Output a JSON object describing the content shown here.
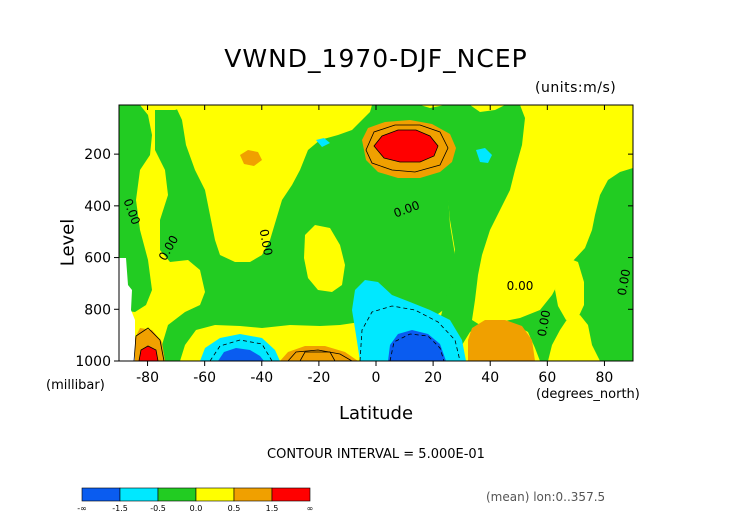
{
  "chart_data": {
    "type": "heatmap",
    "title": "VWND_1970-DJF_NCEP",
    "units_label": "(units:m/s)",
    "xlabel": "Latitude",
    "ylabel": "Level",
    "x_unit_label": "(degrees_north)",
    "y_unit_label": "(millibar)",
    "xlim": [
      -90,
      90
    ],
    "ylim": [
      1000,
      10
    ],
    "x_ticks": [
      -80,
      -60,
      -40,
      -20,
      0,
      20,
      40,
      60,
      80
    ],
    "x_tick_labels": [
      "-80",
      "-60",
      "-40",
      "-20",
      "0",
      "20",
      "40",
      "60",
      "80"
    ],
    "y_ticks": [
      200,
      400,
      600,
      800,
      1000
    ],
    "y_tick_labels": [
      "200",
      "400",
      "600",
      "800",
      "1000"
    ],
    "contour_interval_text": "CONTOUR INTERVAL = 5.000E-01",
    "contour_labels": [
      "0.00",
      "0.00",
      "0.00",
      "0.00",
      "0.00",
      "0.00",
      "0.00"
    ],
    "colorbar": {
      "levels": [
        "-∞",
        "-1.5",
        "-0.5",
        "0.0",
        "0.5",
        "1.5",
        "∞"
      ],
      "colors": [
        "#0a5cf0",
        "#00e8ff",
        "#22cc22",
        "#ffff00",
        "#f0a000",
        "#ff0000"
      ]
    },
    "footer_text": "(mean) lon:0..357.5",
    "background_color": "#ffff00",
    "features": [
      {
        "kind": "max",
        "lat": 12,
        "level": 150,
        "value_class": "red"
      },
      {
        "kind": "min",
        "lat": 12,
        "level": 950,
        "value_class": "blue"
      },
      {
        "kind": "min",
        "lat": -52,
        "level": 980,
        "value_class": "blue"
      },
      {
        "kind": "max",
        "lat": -83,
        "level": 980,
        "value_class": "red"
      }
    ]
  }
}
